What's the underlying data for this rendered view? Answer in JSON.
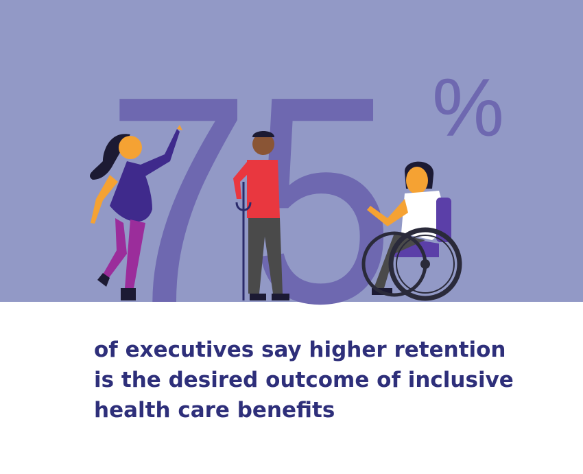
{
  "stat": {
    "number": "75",
    "unit": "%"
  },
  "caption": [
    "of executives say higher retention",
    "is the desired outcome of inclusive",
    "health care benefits"
  ]
}
